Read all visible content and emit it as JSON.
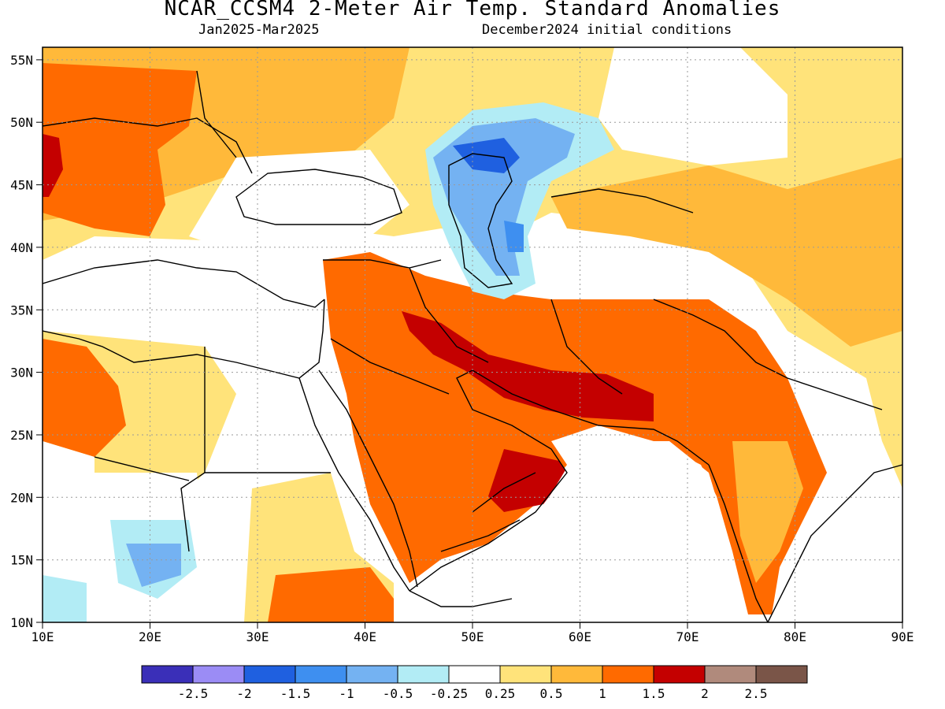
{
  "title": "NCAR_CCSM4 2-Meter Air Temp. Standard Anomalies",
  "subtitle_left": "Jan2025-Mar2025",
  "subtitle_right": "December2024 initial conditions",
  "map": {
    "lon_range": [
      10,
      90
    ],
    "lat_range": [
      10,
      56
    ],
    "lon_ticks": [
      "10E",
      "20E",
      "30E",
      "40E",
      "50E",
      "60E",
      "70E",
      "80E",
      "90E"
    ],
    "lat_ticks": [
      "10N",
      "15N",
      "20N",
      "25N",
      "30N",
      "35N",
      "40N",
      "45N",
      "50N",
      "55N"
    ],
    "grid": "dotted"
  },
  "colorbar": {
    "colors": [
      "#3a2fb8",
      "#9b8cf5",
      "#1f60e0",
      "#3e8ff0",
      "#74b2f2",
      "#b2ecf5",
      "#ffffff",
      "#ffe37a",
      "#ffb93a",
      "#ff6a00",
      "#c40000",
      "#b08a7c",
      "#7a5548"
    ],
    "labels": [
      "-2.5",
      "-2",
      "-1.5",
      "-1",
      "-0.5",
      "-0.25",
      "0.25",
      "0.5",
      "1",
      "1.5",
      "2",
      "2.5"
    ]
  }
}
